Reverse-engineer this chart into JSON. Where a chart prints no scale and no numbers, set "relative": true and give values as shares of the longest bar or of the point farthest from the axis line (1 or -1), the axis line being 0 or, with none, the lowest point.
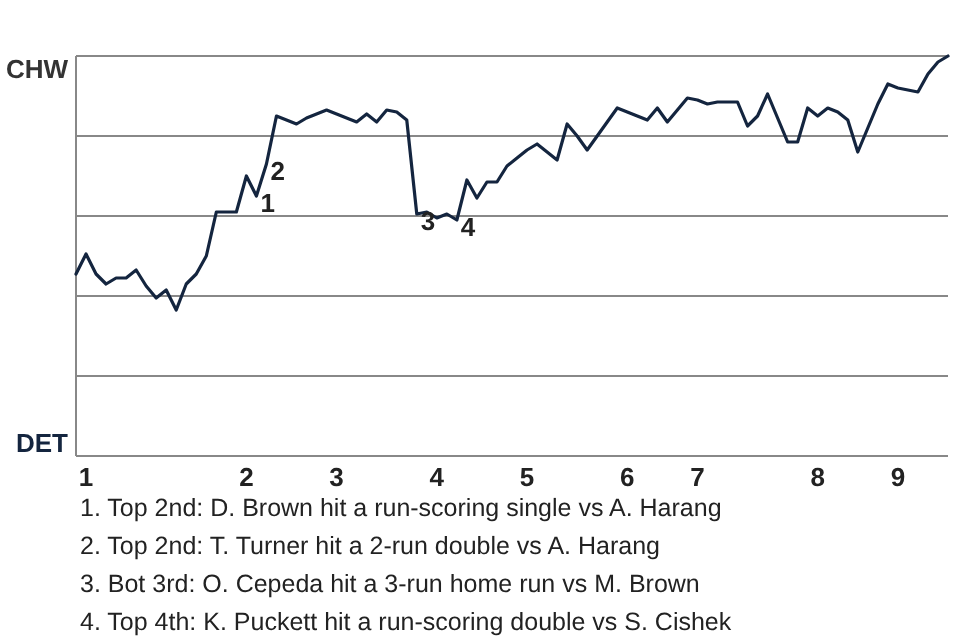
{
  "chart_data": {
    "type": "line",
    "relative": true,
    "categories": [
      null,
      "1",
      null,
      null,
      null,
      null,
      null,
      null,
      null,
      null,
      null,
      null,
      null,
      null,
      null,
      null,
      null,
      "2",
      null,
      null,
      null,
      null,
      null,
      null,
      null,
      null,
      "3",
      null,
      null,
      null,
      null,
      null,
      null,
      null,
      null,
      null,
      "4",
      null,
      null,
      null,
      null,
      null,
      null,
      null,
      null,
      "5",
      null,
      null,
      null,
      null,
      null,
      null,
      null,
      null,
      null,
      "6",
      null,
      null,
      null,
      null,
      null,
      null,
      "7",
      null,
      null,
      null,
      null,
      null,
      null,
      null,
      null,
      null,
      null,
      null,
      "8",
      null,
      null,
      null,
      null,
      null,
      null,
      null,
      "9",
      null,
      null,
      null,
      null,
      null
    ],
    "grid": "y",
    "marker": "none",
    "line_style": "solid",
    "series": [
      {
        "color": "#14253f",
        "values": [
          0.455,
          0.505,
          0.455,
          0.43,
          0.445,
          0.445,
          0.465,
          0.425,
          0.395,
          0.415,
          0.365,
          0.43,
          0.455,
          0.5,
          0.61,
          0.61,
          0.61,
          0.7,
          0.65,
          0.73,
          0.85,
          0.84,
          0.83,
          0.845,
          0.855,
          0.865,
          0.855,
          0.845,
          0.835,
          0.855,
          0.835,
          0.865,
          0.86,
          0.84,
          0.605,
          0.61,
          0.595,
          0.605,
          0.59,
          0.69,
          0.645,
          0.685,
          0.685,
          0.725,
          0.745,
          0.765,
          0.78,
          0.76,
          0.74,
          0.83,
          0.8,
          0.765,
          0.8,
          0.835,
          0.87,
          0.86,
          0.85,
          0.84,
          0.87,
          0.835,
          0.865,
          0.895,
          0.89,
          0.88,
          0.885,
          0.885,
          0.885,
          0.825,
          0.85,
          0.905,
          0.845,
          0.785,
          0.785,
          0.87,
          0.85,
          0.87,
          0.86,
          0.84,
          0.76,
          0.82,
          0.88,
          0.93,
          0.92,
          0.915,
          0.91,
          0.955,
          0.985,
          1
        ]
      }
    ],
    "annotations": [
      {
        "text": "1",
        "y": 0.65
      },
      {
        "text": "2",
        "y": 0.73
      },
      {
        "text": "3",
        "y": 0.605
      },
      {
        "text": "4",
        "y": 0.59
      },
      "CHW",
      "DET",
      "1. Top 2nd: D. Brown hit a run-scoring single vs A. Harang",
      "2. Top 2nd: T. Turner hit a 2-run double vs A. Harang",
      "3. Bot 3rd: O. Cepeda hit a 3-run home run vs M. Brown",
      "4. Top 4th: K. Puckett hit a run-scoring double vs S. Cishek"
    ]
  }
}
